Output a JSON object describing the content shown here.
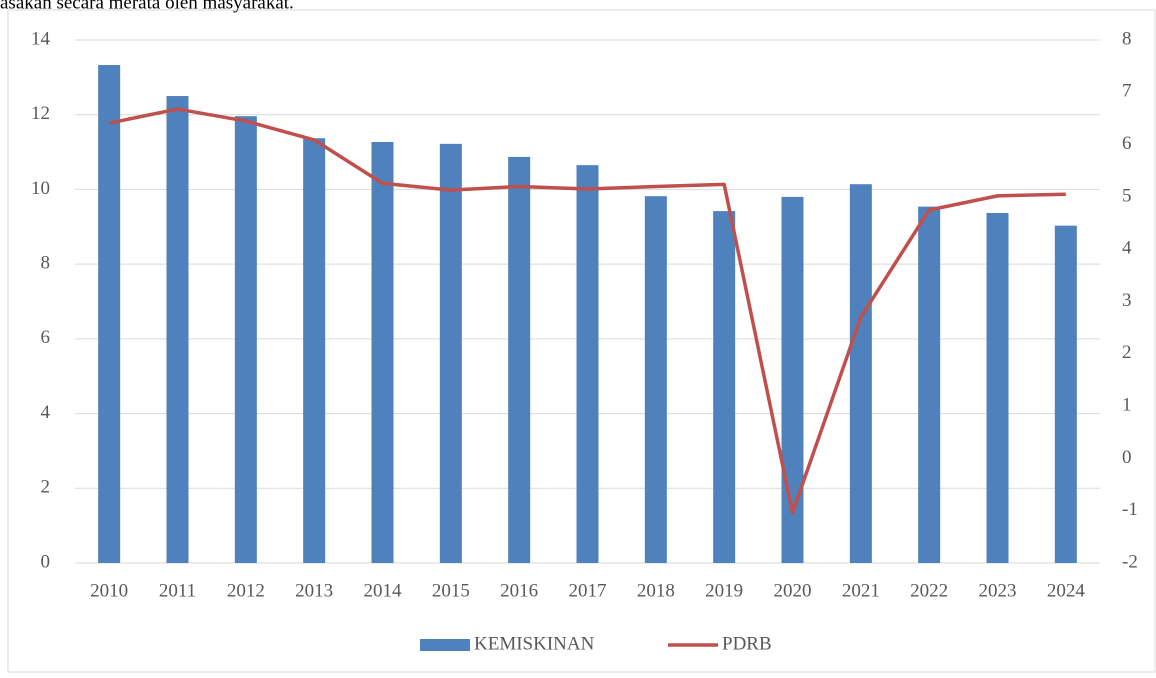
{
  "page_text": "asakan secara merata oleh masyarakat.",
  "chart_data": {
    "type": "bar-line",
    "categories": [
      "2010",
      "2011",
      "2012",
      "2013",
      "2014",
      "2015",
      "2016",
      "2017",
      "2018",
      "2019",
      "2020",
      "2021",
      "2022",
      "2023",
      "2024"
    ],
    "series": [
      {
        "name": "KEMISKINAN",
        "type": "bar",
        "color": "#4f81bd",
        "values": [
          13.33,
          12.5,
          11.96,
          11.37,
          11.27,
          11.22,
          10.87,
          10.65,
          9.82,
          9.42,
          9.8,
          10.14,
          9.54,
          9.37,
          9.03
        ]
      },
      {
        "name": "PDRB",
        "type": "line",
        "axis": "y2",
        "color": "#c0504d",
        "values": [
          6.41,
          6.68,
          6.45,
          6.09,
          5.26,
          5.13,
          5.2,
          5.15,
          5.2,
          5.24,
          -1.04,
          2.7,
          4.75,
          5.02,
          5.05
        ]
      }
    ],
    "ylim": [
      0,
      14
    ],
    "yticks": [
      0,
      2,
      4,
      6,
      8,
      10,
      12,
      14
    ],
    "y2lim": [
      -2,
      8
    ],
    "y2ticks": [
      -2,
      -1,
      0,
      1,
      2,
      3,
      4,
      5,
      6,
      7,
      8
    ],
    "grid": true,
    "legend": "bottom"
  }
}
